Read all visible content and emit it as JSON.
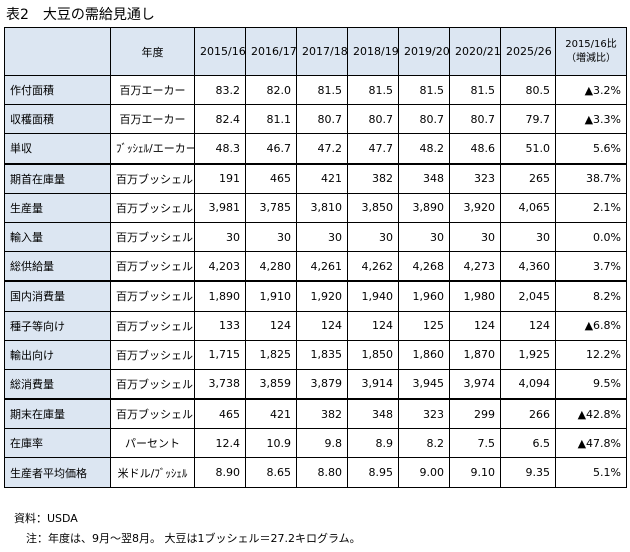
{
  "title": "表2　大豆の需給見通し",
  "header": {
    "unit_label": "年度",
    "years": [
      "2015/16",
      "2016/17",
      "2017/18",
      "2018/19",
      "2019/20",
      "2020/21",
      "2025/26"
    ],
    "ratio_line1": "2015/16比",
    "ratio_line2": "（増減比）"
  },
  "rows": [
    {
      "label": "作付面積",
      "unit": "百万エーカー",
      "values": [
        "83.2",
        "82.0",
        "81.5",
        "81.5",
        "81.5",
        "81.5",
        "80.5"
      ],
      "ratio": "▲3.2%",
      "group_start": false
    },
    {
      "label": "収穫面積",
      "unit": "百万エーカー",
      "values": [
        "82.4",
        "81.1",
        "80.7",
        "80.7",
        "80.7",
        "80.7",
        "79.7"
      ],
      "ratio": "▲3.3%",
      "group_start": false
    },
    {
      "label": "単収",
      "unit": "ﾌﾞｯｼｪﾙ/エーカー",
      "values": [
        "48.3",
        "46.7",
        "47.2",
        "47.7",
        "48.2",
        "48.6",
        "51.0"
      ],
      "ratio": "5.6%",
      "group_start": false
    },
    {
      "label": "期首在庫量",
      "unit": "百万ブッシェル",
      "values": [
        "191",
        "465",
        "421",
        "382",
        "348",
        "323",
        "265"
      ],
      "ratio": "38.7%",
      "group_start": true
    },
    {
      "label": "生産量",
      "unit": "百万ブッシェル",
      "values": [
        "3,981",
        "3,785",
        "3,810",
        "3,850",
        "3,890",
        "3,920",
        "4,065"
      ],
      "ratio": "2.1%",
      "group_start": false
    },
    {
      "label": "輸入量",
      "unit": "百万ブッシェル",
      "values": [
        "30",
        "30",
        "30",
        "30",
        "30",
        "30",
        "30"
      ],
      "ratio": "0.0%",
      "group_start": false
    },
    {
      "label": "総供給量",
      "unit": "百万ブッシェル",
      "values": [
        "4,203",
        "4,280",
        "4,261",
        "4,262",
        "4,268",
        "4,273",
        "4,360"
      ],
      "ratio": "3.7%",
      "group_start": false
    },
    {
      "label": "国内消費量",
      "unit": "百万ブッシェル",
      "values": [
        "1,890",
        "1,910",
        "1,920",
        "1,940",
        "1,960",
        "1,980",
        "2,045"
      ],
      "ratio": "8.2%",
      "group_start": true
    },
    {
      "label": "種子等向け",
      "unit": "百万ブッシェル",
      "values": [
        "133",
        "124",
        "124",
        "124",
        "125",
        "124",
        "124"
      ],
      "ratio": "▲6.8%",
      "group_start": false
    },
    {
      "label": "輸出向け",
      "unit": "百万ブッシェル",
      "values": [
        "1,715",
        "1,825",
        "1,835",
        "1,850",
        "1,860",
        "1,870",
        "1,925"
      ],
      "ratio": "12.2%",
      "group_start": false
    },
    {
      "label": "総消費量",
      "unit": "百万ブッシェル",
      "values": [
        "3,738",
        "3,859",
        "3,879",
        "3,914",
        "3,945",
        "3,974",
        "4,094"
      ],
      "ratio": "9.5%",
      "group_start": false
    },
    {
      "label": "期末在庫量",
      "unit": "百万ブッシェル",
      "values": [
        "465",
        "421",
        "382",
        "348",
        "323",
        "299",
        "266"
      ],
      "ratio": "▲42.8%",
      "group_start": true
    },
    {
      "label": "在庫率",
      "unit": "パーセント",
      "values": [
        "12.4",
        "10.9",
        "9.8",
        "8.9",
        "8.2",
        "7.5",
        "6.5"
      ],
      "ratio": "▲47.8%",
      "group_start": false
    },
    {
      "label": "生産者平均価格",
      "unit": "米ドル/ﾌﾞｯｼｪﾙ",
      "values": [
        "8.90",
        "8.65",
        "8.80",
        "8.95",
        "9.00",
        "9.10",
        "9.35"
      ],
      "ratio": "5.1%",
      "group_start": false
    }
  ],
  "footnotes": {
    "source": "資料：USDA",
    "note": "注：年度は、9月～翌8月。 大豆は1ブッシェル＝27.2キログラム。"
  }
}
